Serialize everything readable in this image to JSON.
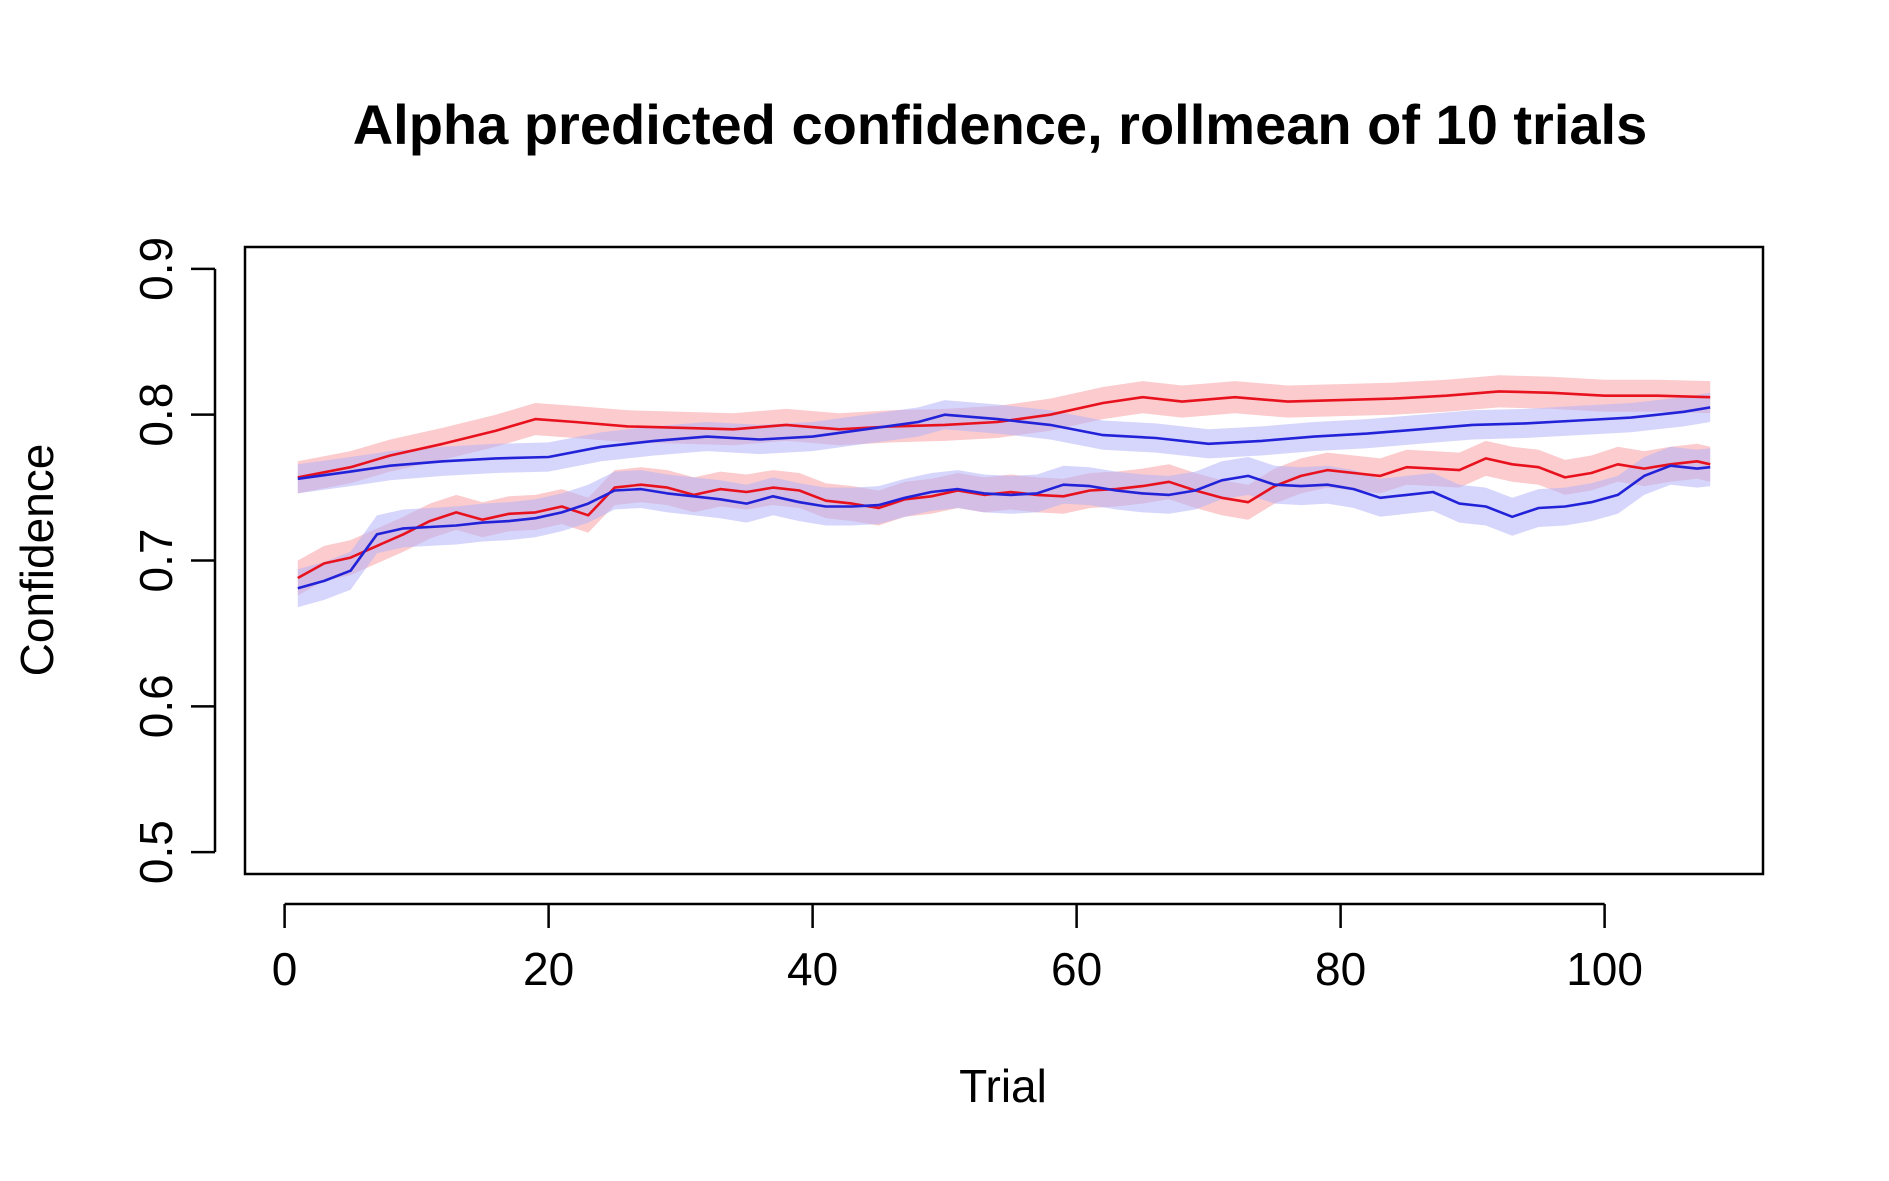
{
  "chart_data": {
    "type": "line",
    "title": "Alpha predicted confidence, rollmean of  10 trials",
    "xlabel": "Trial",
    "ylabel": "Confidence",
    "xlim": [
      -3,
      112
    ],
    "ylim": [
      0.485,
      0.915
    ],
    "xticks": [
      0,
      20,
      40,
      60,
      80,
      100
    ],
    "yticks": [
      0.5,
      0.6,
      0.7,
      0.8,
      0.9
    ],
    "xtick_labels": [
      "0",
      "20",
      "40",
      "60",
      "80",
      "100"
    ],
    "ytick_labels": [
      "0.5",
      "0.6",
      "0.7",
      "0.8",
      "0.9"
    ],
    "grid": false,
    "legend": "none",
    "band_half_width": [
      0.011,
      0.01,
      0.012,
      0.013
    ],
    "series": [
      {
        "color": "#e8121e",
        "band_color": "#f7a0a4",
        "x": [
          1,
          5,
          8,
          12,
          16,
          19,
          22,
          26,
          30,
          34,
          38,
          42,
          46,
          50,
          54,
          58,
          62,
          65,
          68,
          72,
          76,
          80,
          84,
          88,
          92,
          96,
          100,
          104,
          108
        ],
        "values": [
          0.757,
          0.764,
          0.772,
          0.78,
          0.789,
          0.797,
          0.795,
          0.792,
          0.791,
          0.79,
          0.793,
          0.79,
          0.792,
          0.793,
          0.795,
          0.8,
          0.808,
          0.812,
          0.809,
          0.812,
          0.809,
          0.81,
          0.811,
          0.813,
          0.816,
          0.815,
          0.813,
          0.813,
          0.812
        ]
      },
      {
        "color": "#2222d8",
        "band_color": "#b4b4fa",
        "x": [
          1,
          5,
          8,
          12,
          16,
          20,
          24,
          28,
          32,
          36,
          40,
          44,
          48,
          50,
          54,
          58,
          62,
          66,
          70,
          74,
          78,
          82,
          86,
          90,
          94,
          98,
          102,
          106,
          108
        ],
        "values": [
          0.756,
          0.761,
          0.765,
          0.768,
          0.77,
          0.771,
          0.778,
          0.782,
          0.785,
          0.783,
          0.785,
          0.79,
          0.795,
          0.8,
          0.797,
          0.793,
          0.786,
          0.784,
          0.78,
          0.782,
          0.785,
          0.787,
          0.79,
          0.793,
          0.794,
          0.796,
          0.798,
          0.802,
          0.805
        ]
      },
      {
        "color": "#e8121e",
        "band_color": "#f7a0a4",
        "x": [
          1,
          3,
          5,
          7,
          9,
          11,
          13,
          15,
          17,
          19,
          21,
          23,
          25,
          27,
          29,
          31,
          33,
          35,
          37,
          39,
          41,
          43,
          45,
          47,
          49,
          51,
          53,
          55,
          57,
          59,
          61,
          63,
          65,
          67,
          69,
          71,
          73,
          75,
          77,
          79,
          81,
          83,
          85,
          87,
          89,
          91,
          93,
          95,
          97,
          99,
          101,
          103,
          105,
          107,
          108
        ],
        "values": [
          0.688,
          0.698,
          0.702,
          0.71,
          0.718,
          0.727,
          0.733,
          0.728,
          0.732,
          0.733,
          0.737,
          0.731,
          0.75,
          0.752,
          0.75,
          0.745,
          0.749,
          0.747,
          0.75,
          0.748,
          0.741,
          0.739,
          0.736,
          0.742,
          0.744,
          0.748,
          0.745,
          0.747,
          0.745,
          0.744,
          0.748,
          0.749,
          0.751,
          0.754,
          0.748,
          0.743,
          0.74,
          0.751,
          0.758,
          0.762,
          0.76,
          0.758,
          0.764,
          0.763,
          0.762,
          0.77,
          0.766,
          0.764,
          0.757,
          0.76,
          0.766,
          0.763,
          0.766,
          0.768,
          0.766
        ]
      },
      {
        "color": "#2222d8",
        "band_color": "#b4b4fa",
        "x": [
          1,
          3,
          5,
          7,
          9,
          11,
          13,
          15,
          17,
          19,
          21,
          23,
          25,
          27,
          29,
          31,
          33,
          35,
          37,
          39,
          41,
          43,
          45,
          47,
          49,
          51,
          53,
          55,
          57,
          59,
          61,
          63,
          65,
          67,
          69,
          71,
          73,
          75,
          77,
          79,
          81,
          83,
          85,
          87,
          89,
          91,
          93,
          95,
          97,
          99,
          101,
          103,
          105,
          107,
          108
        ],
        "values": [
          0.681,
          0.686,
          0.693,
          0.718,
          0.722,
          0.723,
          0.724,
          0.726,
          0.727,
          0.729,
          0.733,
          0.739,
          0.748,
          0.749,
          0.746,
          0.744,
          0.742,
          0.739,
          0.744,
          0.74,
          0.737,
          0.737,
          0.738,
          0.743,
          0.747,
          0.749,
          0.746,
          0.745,
          0.746,
          0.752,
          0.751,
          0.748,
          0.746,
          0.745,
          0.748,
          0.755,
          0.758,
          0.752,
          0.751,
          0.752,
          0.749,
          0.743,
          0.745,
          0.747,
          0.739,
          0.737,
          0.73,
          0.736,
          0.737,
          0.74,
          0.745,
          0.758,
          0.765,
          0.763,
          0.764
        ]
      }
    ]
  }
}
